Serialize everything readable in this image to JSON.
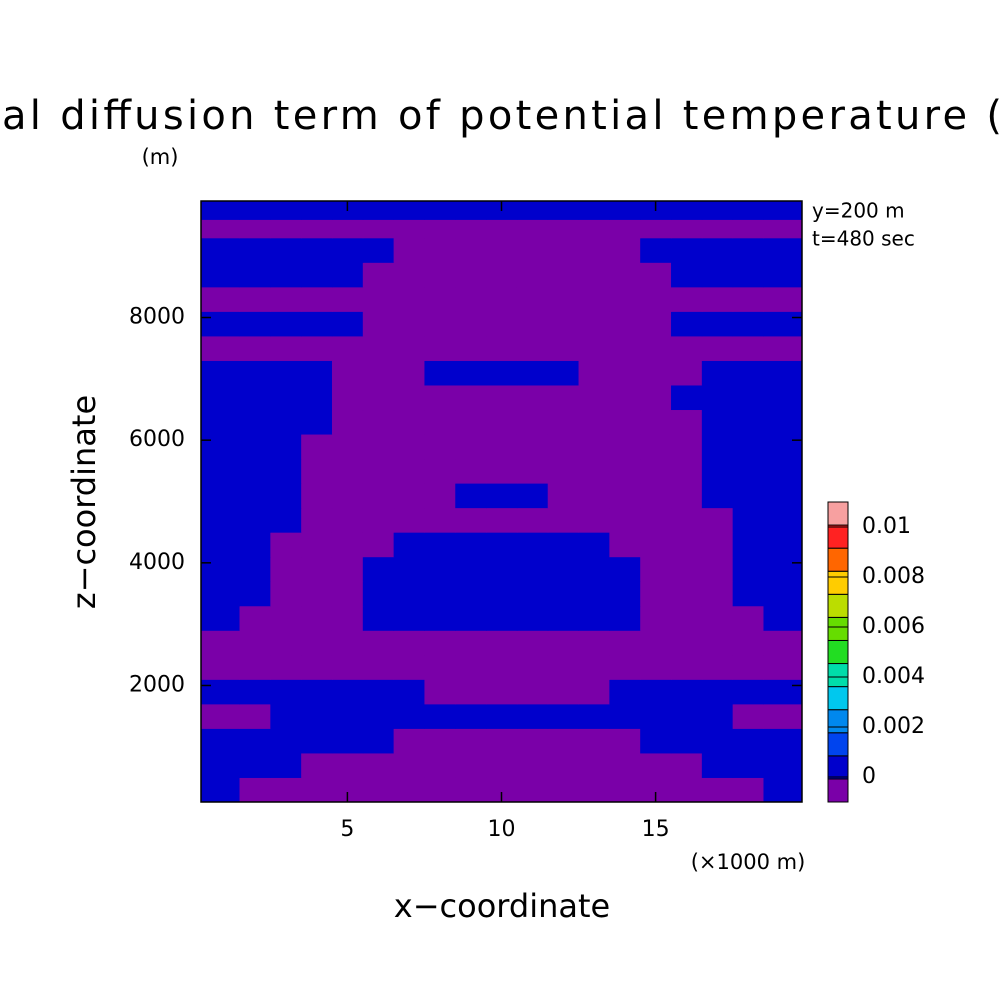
{
  "chart_data": {
    "type": "contour",
    "title": "al diffusion term of potential temperature (",
    "y_unit": "(m)",
    "x_unit": "(×1000 m)",
    "x_label": "x−coordinate",
    "y_label": "z−coordinate",
    "annotations": [
      "y=200 m",
      "t=480 sec"
    ],
    "xlim": [
      0.25,
      19.75
    ],
    "ylim": [
      100,
      9900
    ],
    "xticks": [
      5,
      10,
      15
    ],
    "yticks": [
      2000,
      4000,
      6000,
      8000
    ],
    "x": [
      1,
      2,
      3,
      4,
      5,
      6,
      7,
      8,
      9,
      10,
      11,
      12,
      13,
      14,
      15,
      16,
      17,
      18,
      19
    ],
    "y": [
      300,
      700,
      1100,
      1500,
      1900,
      2300,
      2700,
      3100,
      3500,
      3900,
      4300,
      4700,
      5100,
      5500,
      5900,
      6300,
      6700,
      7100,
      7500,
      7900,
      8300,
      8700,
      9100,
      9500,
      9700
    ],
    "z": [
      [
        0.0005,
        -0.0005,
        -0.0005,
        -0.0005,
        -0.0005,
        -0.0005,
        -0.0005,
        -0.0005,
        -0.0005,
        -0.0005,
        -0.0005,
        -0.0005,
        -0.0005,
        -0.0005,
        -0.0005,
        -0.0005,
        -0.0005,
        -0.0005,
        0.0005
      ],
      [
        0.0005,
        0.0005,
        0.0005,
        -0.0005,
        -0.0005,
        -0.0005,
        -0.0005,
        -0.0005,
        -0.0005,
        -0.0005,
        -0.0005,
        -0.0005,
        -0.0005,
        -0.0005,
        -0.0005,
        -0.0005,
        0.0005,
        0.0005,
        0.0005
      ],
      [
        0.0005,
        0.0005,
        0.0005,
        0.0005,
        0.0005,
        0.0005,
        -0.0005,
        -0.0005,
        -0.0005,
        -0.0005,
        -0.0005,
        -0.0005,
        -0.0005,
        -0.0005,
        0.0005,
        0.0005,
        0.0005,
        0.0005,
        0.0005
      ],
      [
        -0.0005,
        -0.0005,
        0.0005,
        0.0005,
        0.0005,
        0.0005,
        0.0005,
        0.0005,
        0.0005,
        0.0005,
        0.0005,
        0.0005,
        0.0005,
        0.0005,
        0.0005,
        0.0005,
        0.0005,
        -0.0005,
        -0.0005
      ],
      [
        0.0005,
        0.0005,
        0.0005,
        0.0005,
        0.0005,
        0.0005,
        0.0005,
        -0.0005,
        -0.0005,
        -0.0005,
        -0.0005,
        -0.0005,
        -0.0005,
        0.0005,
        0.0005,
        0.0005,
        0.0005,
        0.0005,
        0.0005
      ],
      [
        -0.0005,
        -0.0005,
        -0.0005,
        -0.0005,
        -0.0005,
        -0.0005,
        -0.0005,
        -0.0005,
        -0.0005,
        -0.0005,
        -0.0005,
        -0.0005,
        -0.0005,
        -0.0005,
        -0.0005,
        -0.0005,
        -0.0005,
        -0.0005,
        -0.0005
      ],
      [
        -0.0005,
        -0.0005,
        -0.0005,
        -0.0005,
        -0.0005,
        -0.0005,
        -0.0005,
        -0.0005,
        -0.0005,
        -0.0005,
        -0.0005,
        -0.0005,
        -0.0005,
        -0.0005,
        -0.0005,
        -0.0005,
        -0.0005,
        -0.0005,
        -0.0005
      ],
      [
        0.0005,
        -0.0005,
        -0.0005,
        -0.0005,
        -0.0005,
        0.0005,
        0.0005,
        0.0005,
        0.0005,
        0.0005,
        0.0005,
        0.0005,
        0.0005,
        0.0005,
        -0.0005,
        -0.0005,
        -0.0005,
        -0.0005,
        0.0005
      ],
      [
        0.0005,
        0.0005,
        -0.0005,
        -0.0005,
        -0.0005,
        0.0005,
        0.0005,
        0.0005,
        0.0005,
        0.0005,
        0.0005,
        0.0005,
        0.0005,
        0.0005,
        -0.0005,
        -0.0005,
        -0.0005,
        0.0005,
        0.0005
      ],
      [
        0.0005,
        0.0005,
        -0.0005,
        -0.0005,
        -0.0005,
        0.0005,
        0.0005,
        0.0005,
        0.0005,
        0.0005,
        0.0005,
        0.0005,
        0.0005,
        0.0005,
        -0.0005,
        -0.0005,
        -0.0005,
        0.0005,
        0.0005
      ],
      [
        0.0005,
        0.0005,
        -0.0005,
        -0.0005,
        -0.0005,
        -0.0005,
        0.0005,
        0.0005,
        0.0005,
        0.0005,
        0.0005,
        0.0005,
        0.0005,
        -0.0005,
        -0.0005,
        -0.0005,
        -0.0005,
        0.0005,
        0.0005
      ],
      [
        0.0005,
        0.0005,
        0.0005,
        -0.0005,
        -0.0005,
        -0.0005,
        -0.0005,
        -0.0005,
        -0.0005,
        -0.0005,
        -0.0005,
        -0.0005,
        -0.0005,
        -0.0005,
        -0.0005,
        -0.0005,
        -0.0005,
        0.0005,
        0.0005
      ],
      [
        0.0005,
        0.0005,
        0.0005,
        -0.0005,
        -0.0005,
        -0.0005,
        -0.0005,
        -0.0005,
        0.0005,
        0.0005,
        0.0005,
        -0.0005,
        -0.0005,
        -0.0005,
        -0.0005,
        -0.0005,
        0.0005,
        0.0005,
        0.0005
      ],
      [
        0.0005,
        0.0005,
        0.0005,
        -0.0005,
        -0.0005,
        -0.0005,
        -0.0005,
        -0.0005,
        -0.0005,
        -0.0005,
        -0.0005,
        -0.0005,
        -0.0005,
        -0.0005,
        -0.0005,
        -0.0005,
        0.0005,
        0.0005,
        0.0005
      ],
      [
        0.0005,
        0.0005,
        0.0005,
        -0.0005,
        -0.0005,
        -0.0005,
        -0.0005,
        -0.0005,
        -0.0005,
        -0.0005,
        -0.0005,
        -0.0005,
        -0.0005,
        -0.0005,
        -0.0005,
        -0.0005,
        0.0005,
        0.0005,
        0.0005
      ],
      [
        0.0005,
        0.0005,
        0.0005,
        0.0005,
        -0.0005,
        -0.0005,
        -0.0005,
        -0.0005,
        -0.0005,
        -0.0005,
        -0.0005,
        -0.0005,
        -0.0005,
        -0.0005,
        -0.0005,
        -0.0005,
        0.0005,
        0.0005,
        0.0005
      ],
      [
        0.0005,
        0.0005,
        0.0005,
        0.0005,
        -0.0005,
        -0.0005,
        -0.0005,
        -0.0005,
        -0.0005,
        -0.0005,
        -0.0005,
        -0.0005,
        -0.0005,
        -0.0005,
        -0.0005,
        0.0005,
        0.0005,
        0.0005,
        0.0005
      ],
      [
        0.0005,
        0.0005,
        0.0005,
        0.0005,
        -0.0005,
        -0.0005,
        -0.0005,
        0.0005,
        0.0005,
        0.0005,
        0.0005,
        0.0005,
        -0.0005,
        -0.0005,
        -0.0005,
        -0.0005,
        0.0005,
        0.0005,
        0.0005
      ],
      [
        -0.0005,
        -0.0005,
        -0.0005,
        -0.0005,
        -0.0005,
        -0.0005,
        -0.0005,
        -0.0005,
        -0.0005,
        -0.0005,
        -0.0005,
        -0.0005,
        -0.0005,
        -0.0005,
        -0.0005,
        -0.0005,
        -0.0005,
        -0.0005,
        -0.0005
      ],
      [
        0.0005,
        0.0005,
        0.0005,
        0.0005,
        0.0005,
        -0.0005,
        -0.0005,
        -0.0005,
        -0.0005,
        -0.0005,
        -0.0005,
        -0.0005,
        -0.0005,
        -0.0005,
        -0.0005,
        0.0005,
        0.0005,
        0.0005,
        0.0005
      ],
      [
        -0.0005,
        -0.0005,
        -0.0005,
        -0.0005,
        -0.0005,
        -0.0005,
        -0.0005,
        -0.0005,
        -0.0005,
        -0.0005,
        -0.0005,
        -0.0005,
        -0.0005,
        -0.0005,
        -0.0005,
        -0.0005,
        -0.0005,
        -0.0005,
        -0.0005
      ],
      [
        0.0005,
        0.0005,
        0.0005,
        0.0005,
        0.0005,
        -0.0005,
        -0.0005,
        -0.0005,
        -0.0005,
        -0.0005,
        -0.0005,
        -0.0005,
        -0.0005,
        -0.0005,
        -0.0005,
        0.0005,
        0.0005,
        0.0005,
        0.0005
      ],
      [
        0.0005,
        0.0005,
        0.0005,
        0.0005,
        0.0005,
        0.0005,
        -0.0005,
        -0.0005,
        -0.0005,
        -0.0005,
        -0.0005,
        -0.0005,
        -0.0005,
        -0.0005,
        0.0005,
        0.0005,
        0.0005,
        0.0005,
        0.0005
      ],
      [
        -0.0005,
        -0.0005,
        -0.0005,
        -0.0005,
        -0.0005,
        -0.0005,
        -0.0005,
        -0.0005,
        -0.0005,
        -0.0005,
        -0.0005,
        -0.0005,
        -0.0005,
        -0.0005,
        -0.0005,
        -0.0005,
        -0.0005,
        -0.0005,
        -0.0005
      ],
      [
        0.0005,
        0.0005,
        0.0005,
        0.0005,
        0.0005,
        0.0005,
        0.0005,
        0.0005,
        0.0005,
        0.0005,
        0.0005,
        0.0005,
        0.0005,
        0.0005,
        0.0005,
        0.0005,
        0.0005,
        0.0005,
        0.0005
      ]
    ],
    "colorbar": {
      "lim": [
        -0.001,
        0.011
      ],
      "ticks": [
        0,
        0.002,
        0.004,
        0.006,
        0.008,
        0.01
      ],
      "colors": [
        "#7a00a8",
        "#0000cc",
        "#0044ee",
        "#0088ee",
        "#00c8ee",
        "#00ddaa",
        "#22dd22",
        "#66dd00",
        "#bbdd00",
        "#ffcc00",
        "#ff6600",
        "#ff2222",
        "#f7a0a0"
      ]
    }
  }
}
